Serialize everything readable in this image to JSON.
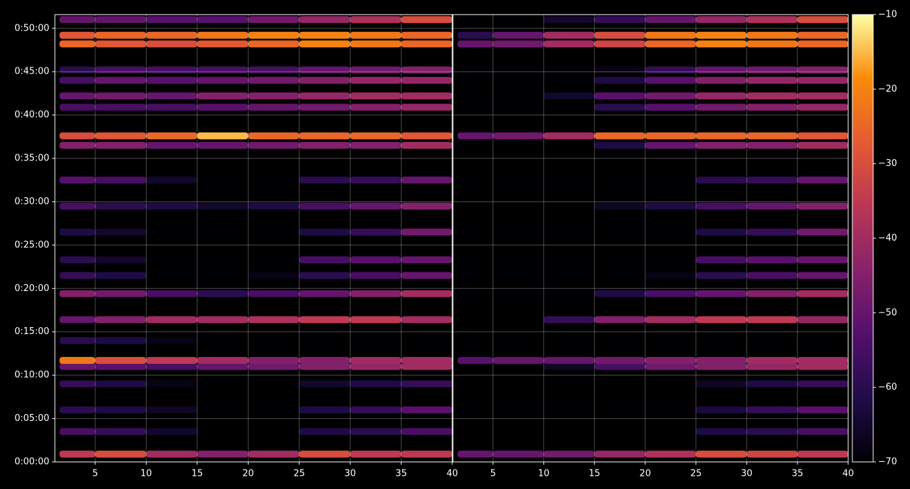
{
  "chart_data": {
    "type": "heatmap",
    "colormap": "inferno",
    "grid": true,
    "xlim": [
      1.05,
      40
    ],
    "xticks": [
      5,
      10,
      15,
      20,
      25,
      30,
      35,
      40
    ],
    "bins": [
      1.5,
      5,
      10,
      15,
      20,
      25,
      30,
      35,
      40
    ],
    "ylim": [
      0,
      3095
    ],
    "yticks": [
      {
        "value": 0,
        "label": "0:00:00"
      },
      {
        "value": 300,
        "label": "0:05:00"
      },
      {
        "value": 600,
        "label": "0:10:00"
      },
      {
        "value": 900,
        "label": "0:15:00"
      },
      {
        "value": 1200,
        "label": "0:20:00"
      },
      {
        "value": 1500,
        "label": "0:25:00"
      },
      {
        "value": 1800,
        "label": "0:30:00"
      },
      {
        "value": 2100,
        "label": "0:35:00"
      },
      {
        "value": 2400,
        "label": "0:40:00"
      },
      {
        "value": 2700,
        "label": "0:45:00"
      },
      {
        "value": 3000,
        "label": "0:50:00"
      }
    ],
    "y": [
      54,
      210,
      360,
      540,
      660,
      702,
      840,
      984,
      1164,
      1290,
      1398,
      1590,
      1770,
      1950,
      2190,
      2256,
      2454,
      2532,
      2640,
      2712,
      2892,
      2952,
      3060
    ],
    "clim": [
      -70,
      -10
    ],
    "cticks": [
      {
        "value": -70,
        "label": "−70"
      },
      {
        "value": -60,
        "label": "−60"
      },
      {
        "value": -50,
        "label": "−50"
      },
      {
        "value": -40,
        "label": "−40"
      },
      {
        "value": -30,
        "label": "−30"
      },
      {
        "value": -20,
        "label": "−20"
      },
      {
        "value": -10,
        "label": "−10"
      }
    ],
    "panels": [
      {
        "values": [
          [
            -35,
            -30,
            -40,
            -45,
            -40,
            -30,
            -35,
            -35
          ],
          [
            -55,
            -58,
            -65,
            -70,
            -70,
            -62,
            -60,
            -55
          ],
          [
            -60,
            -62,
            -66,
            -70,
            -70,
            -62,
            -58,
            -52
          ],
          [
            -58,
            -62,
            -68,
            -70,
            -70,
            -65,
            -62,
            -58
          ],
          [
            -50,
            -52,
            -55,
            -50,
            -48,
            -45,
            -42,
            -40
          ],
          [
            -22,
            -30,
            -35,
            -40,
            -45,
            -45,
            -40,
            -40
          ],
          [
            -60,
            -62,
            -68,
            -70,
            -70,
            -70,
            -70,
            -70
          ],
          [
            -50,
            -45,
            -40,
            -40,
            -38,
            -35,
            -35,
            -40
          ],
          [
            -45,
            -48,
            -55,
            -60,
            -55,
            -50,
            -45,
            -40
          ],
          [
            -58,
            -62,
            -70,
            -70,
            -68,
            -60,
            -55,
            -50
          ],
          [
            -60,
            -65,
            -70,
            -70,
            -70,
            -55,
            -52,
            -50
          ],
          [
            -62,
            -65,
            -70,
            -70,
            -70,
            -62,
            -58,
            -48
          ],
          [
            -55,
            -60,
            -62,
            -65,
            -62,
            -55,
            -50,
            -45
          ],
          [
            -52,
            -55,
            -65,
            -70,
            -70,
            -60,
            -58,
            -50
          ],
          [
            -45,
            -45,
            -50,
            -50,
            -48,
            -45,
            -45,
            -40
          ],
          [
            -30,
            -28,
            -25,
            -15,
            -25,
            -25,
            -25,
            -28
          ],
          [
            -55,
            -55,
            -55,
            -52,
            -50,
            -48,
            -45,
            -42
          ],
          [
            -50,
            -48,
            -50,
            -45,
            -45,
            -42,
            -40,
            -40
          ],
          [
            -55,
            -50,
            -52,
            -50,
            -48,
            -45,
            -42,
            -42
          ],
          [
            -60,
            -55,
            -55,
            -55,
            -55,
            -50,
            -48,
            -45
          ],
          [
            -25,
            -28,
            -30,
            -28,
            -25,
            -20,
            -22,
            -25
          ],
          [
            -28,
            -25,
            -25,
            -22,
            -20,
            -20,
            -22,
            -25
          ],
          [
            -50,
            -50,
            -52,
            -52,
            -48,
            -42,
            -38,
            -30
          ]
        ]
      },
      {
        "values": [
          [
            -50,
            -50,
            -48,
            -42,
            -38,
            -30,
            -32,
            -35
          ],
          [
            -70,
            -70,
            -70,
            -70,
            -70,
            -62,
            -60,
            -55
          ],
          [
            -70,
            -70,
            -70,
            -70,
            -70,
            -63,
            -58,
            -52
          ],
          [
            -70,
            -70,
            -70,
            -70,
            -70,
            -66,
            -62,
            -58
          ],
          [
            -70,
            -70,
            -66,
            -55,
            -48,
            -45,
            -42,
            -40
          ],
          [
            -52,
            -50,
            -50,
            -48,
            -45,
            -45,
            -40,
            -40
          ],
          [
            -70,
            -70,
            -70,
            -70,
            -70,
            -70,
            -70,
            -70
          ],
          [
            -70,
            -70,
            -58,
            -45,
            -40,
            -35,
            -35,
            -42
          ],
          [
            -70,
            -70,
            -70,
            -62,
            -55,
            -50,
            -45,
            -40
          ],
          [
            -70,
            -70,
            -70,
            -70,
            -68,
            -60,
            -55,
            -50
          ],
          [
            -70,
            -70,
            -70,
            -70,
            -70,
            -55,
            -52,
            -50
          ],
          [
            -70,
            -70,
            -70,
            -70,
            -70,
            -62,
            -58,
            -48
          ],
          [
            -70,
            -70,
            -70,
            -66,
            -62,
            -55,
            -50,
            -45
          ],
          [
            -70,
            -70,
            -70,
            -70,
            -70,
            -60,
            -58,
            -50
          ],
          [
            -70,
            -70,
            -70,
            -62,
            -50,
            -45,
            -45,
            -40
          ],
          [
            -50,
            -48,
            -40,
            -25,
            -25,
            -25,
            -25,
            -28
          ],
          [
            -70,
            -70,
            -70,
            -60,
            -52,
            -48,
            -45,
            -42
          ],
          [
            -70,
            -70,
            -65,
            -52,
            -48,
            -42,
            -40,
            -40
          ],
          [
            -70,
            -70,
            -70,
            -62,
            -52,
            -45,
            -42,
            -42
          ],
          [
            -70,
            -70,
            -70,
            -68,
            -58,
            -50,
            -48,
            -45
          ],
          [
            -50,
            -48,
            -40,
            -32,
            -25,
            -20,
            -22,
            -25
          ],
          [
            -60,
            -50,
            -40,
            -30,
            -22,
            -20,
            -22,
            -25
          ],
          [
            -70,
            -70,
            -65,
            -58,
            -50,
            -42,
            -38,
            -30
          ]
        ]
      }
    ]
  }
}
